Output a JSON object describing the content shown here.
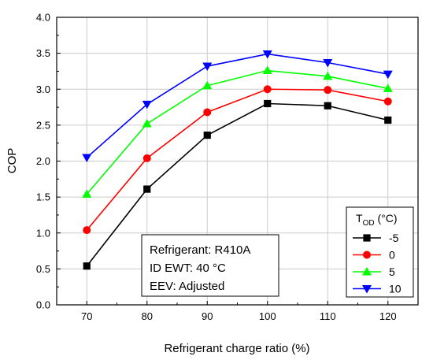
{
  "chart_data": {
    "type": "line",
    "xlabel": "Refrigerant charge ratio (%)",
    "ylabel": "COP",
    "x": [
      70,
      80,
      90,
      100,
      110,
      120
    ],
    "xlim": [
      65,
      125
    ],
    "ylim": [
      0.0,
      4.0
    ],
    "xticks": [
      "70",
      "80",
      "90",
      "100",
      "110",
      "120"
    ],
    "yticks": [
      "0.0",
      "0.5",
      "1.0",
      "1.5",
      "2.0",
      "2.5",
      "3.0",
      "3.5",
      "4.0"
    ],
    "grid": true,
    "series": [
      {
        "name": "-5",
        "values": [
          0.54,
          1.61,
          2.36,
          2.8,
          2.77,
          2.57
        ],
        "color": "#000000",
        "marker": "square"
      },
      {
        "name": "0",
        "values": [
          1.04,
          2.04,
          2.68,
          3.0,
          2.99,
          2.83
        ],
        "color": "#ff0000",
        "marker": "circle"
      },
      {
        "name": "5",
        "values": [
          1.54,
          2.52,
          3.05,
          3.26,
          3.18,
          3.01
        ],
        "color": "#00ff00",
        "marker": "triangle-up"
      },
      {
        "name": "10",
        "values": [
          2.05,
          2.79,
          3.32,
          3.49,
          3.37,
          3.21
        ],
        "color": "#0000ff",
        "marker": "triangle-down"
      }
    ],
    "legend": {
      "title_main": "T",
      "title_sub": "OD",
      "title_unit": " (°C)",
      "placement": "bottom-right"
    },
    "annotation": {
      "lines": [
        "Refrigerant: R410A",
        "ID EWT: 40 °C",
        "EEV: Adjusted"
      ]
    }
  }
}
